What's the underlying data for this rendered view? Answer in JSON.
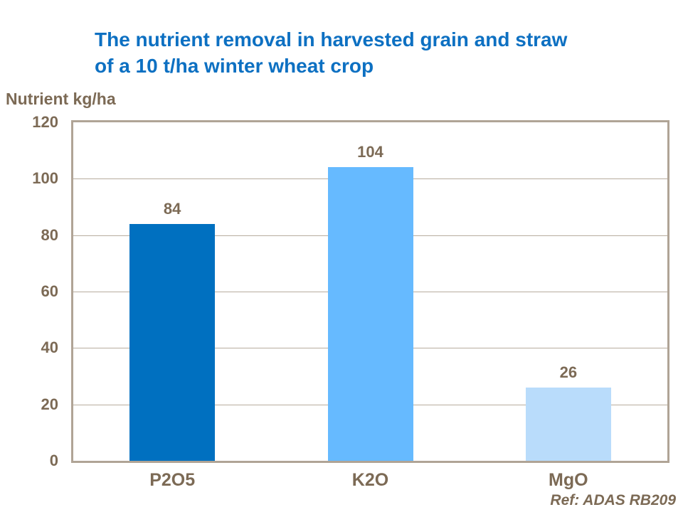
{
  "title": {
    "line1": "The nutrient removal in harvested grain and straw",
    "line2": "of a 10 t/ha winter wheat crop"
  },
  "axis_title": "Nutrient kg/ha",
  "ref_note": "Ref: ADAS RB209",
  "colors": {
    "title_blue": "#0d70c2",
    "text_brown": "#7c6a55",
    "plot_border": "#b0a496",
    "gridline": "#b7ac9e",
    "bar_p2o5": "#0070c0",
    "bar_k2o": "#66baff",
    "bar_mgo": "#b9dcfb"
  },
  "chart_data": {
    "type": "bar",
    "title": "The nutrient removal in harvested grain and straw of a 10 t/ha winter wheat crop",
    "categories": [
      "P2O5",
      "K2O",
      "MgO"
    ],
    "values": [
      84,
      104,
      26
    ],
    "bar_colors": [
      "#0070c0",
      "#66baff",
      "#b9dcfb"
    ],
    "data_labels_shown": true,
    "xlabel": "",
    "ylabel": "Nutrient kg/ha",
    "ylim": [
      0,
      120
    ],
    "yticks": [
      0,
      20,
      40,
      60,
      80,
      100,
      120
    ],
    "grid": "horizontal",
    "legend": "none",
    "annotation": "Ref: ADAS RB209"
  }
}
